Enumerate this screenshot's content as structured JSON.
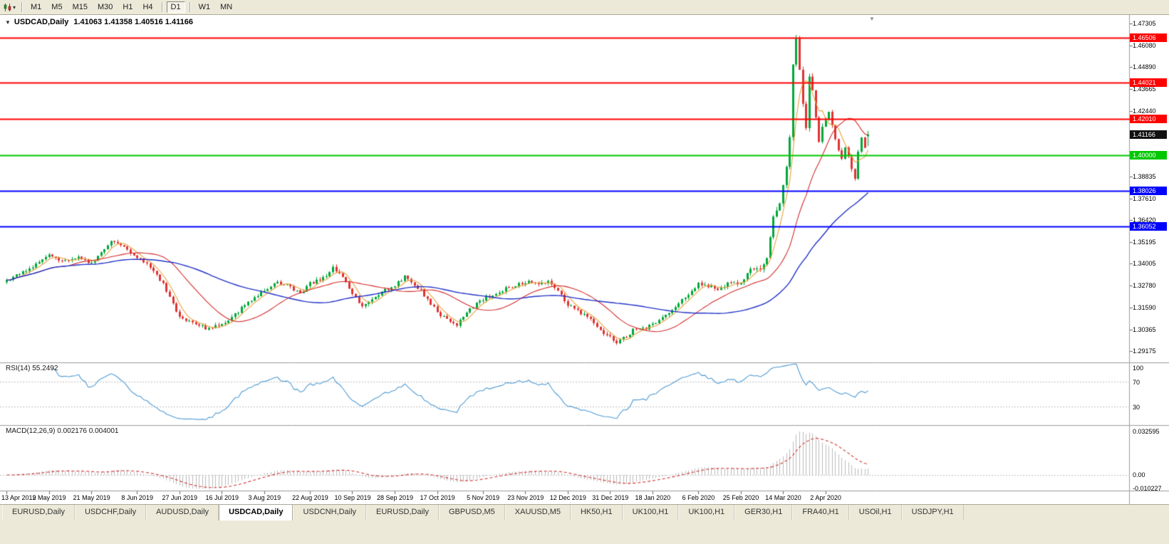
{
  "toolbar": {
    "timeframes": [
      "M1",
      "M5",
      "M15",
      "M30",
      "H1",
      "H4",
      "D1",
      "W1",
      "MN"
    ],
    "active_timeframe": "D1"
  },
  "icons": {
    "chart_type": "candlestick-chart-icon",
    "dropdown_caret": "▾",
    "legend_collapse": "▼",
    "shift_marker": "▼"
  },
  "chart": {
    "legend": {
      "title": "USDCAD,Daily",
      "ohlc": "1.41063 1.41358 1.40516 1.41166"
    },
    "price_axis_labels": [
      "1.47305",
      "1.46080",
      "1.44890",
      "1.43665",
      "1.42440",
      "1.38835",
      "1.37610",
      "1.36420",
      "1.35195",
      "1.34005",
      "1.32780",
      "1.31590",
      "1.30365",
      "1.29175"
    ],
    "current_price_label": "1.41166",
    "levels": [
      {
        "price": 1.46506,
        "label": "1.46506",
        "color": "#FF0000"
      },
      {
        "price": 1.44021,
        "label": "1.44021",
        "color": "#FF0000"
      },
      {
        "price": 1.4201,
        "label": "1.42010",
        "color": "#FF0000"
      },
      {
        "price": 1.4,
        "label": "1.40000",
        "color": "#00C800"
      },
      {
        "price": 1.38026,
        "label": "1.38026",
        "color": "#0000FF"
      },
      {
        "price": 1.36052,
        "label": "1.36052",
        "color": "#0000FF"
      }
    ],
    "date_labels": [
      "13 Apr 2019",
      "2 May 2019",
      "21 May 2019",
      "8 Jun 2019",
      "27 Jun 2019",
      "16 Jul 2019",
      "3 Aug 2019",
      "22 Aug 2019",
      "10 Sep 2019",
      "28 Sep 2019",
      "17 Oct 2019",
      "5 Nov 2019",
      "23 Nov 2019",
      "12 Dec 2019",
      "31 Dec 2019",
      "18 Jan 2020",
      "6 Feb 2020",
      "25 Feb 2020",
      "14 Mar 2020",
      "2 Apr 2020"
    ],
    "date_tick_indices": [
      0,
      13,
      26,
      40,
      53,
      66,
      79,
      93,
      106,
      119,
      132,
      146,
      159,
      172,
      185,
      198,
      212,
      225,
      238,
      251
    ]
  },
  "rsi_panel": {
    "label": "RSI(14) 55.2492",
    "axis_labels": [
      {
        "value": 100,
        "text": "100"
      },
      {
        "value": 70,
        "text": "70"
      },
      {
        "value": 30,
        "text": "30"
      }
    ]
  },
  "macd_panel": {
    "label": "MACD(12,26,9) 0.002176 0.004001",
    "axis_labels": [
      "0.032595",
      "0.00",
      "-0.010227"
    ]
  },
  "tabs": {
    "items": [
      "EURUSD,Daily",
      "USDCHF,Daily",
      "AUDUSD,Daily",
      "USDCAD,Daily",
      "USDCNH,Daily",
      "EURUSD,Daily",
      "GBPUSD,M5",
      "XAUUSD,M5",
      "HK50,H1",
      "UK100,H1",
      "UK100,H1",
      "GER30,H1",
      "FRA40,H1",
      "USOil,H1",
      "USDJPY,H1"
    ],
    "active_index": 3
  },
  "colors": {
    "toolbar_bg": "#ECE9D8",
    "chart_bg": "#FFFFFF",
    "candle_up": "#00A839",
    "candle_down": "#E03232",
    "ma_fast": "#E8A33D",
    "ma_mid": "#D42A2A",
    "ma_slow": "#2233C8",
    "rsi_line": "#4E9BD4",
    "macd_histogram": "#BBBBBB",
    "macd_signal": "#D43333",
    "current_price_bg": "#111111",
    "level_red": "#FF0000",
    "level_green": "#00C800",
    "level_blue": "#0000FF"
  },
  "chart_data": {
    "type": "candlestick",
    "symbol": "USDCAD",
    "timeframe": "Daily",
    "last_ohlc": {
      "open": 1.41063,
      "high": 1.41358,
      "low": 1.40516,
      "close": 1.41166
    },
    "num_candles": 265,
    "price_axis_range": {
      "top": 1.4782,
      "bottom": 1.2854
    },
    "horizontal_levels": [
      1.46506,
      1.44021,
      1.4201,
      1.4,
      1.38026,
      1.36052
    ],
    "spike": {
      "index": 242,
      "high": 1.4668
    },
    "low_point": {
      "index": 187,
      "low": 1.2951
    },
    "close_anchors": [
      [
        0,
        1.331
      ],
      [
        4,
        1.3345
      ],
      [
        8,
        1.338
      ],
      [
        13,
        1.345
      ],
      [
        17,
        1.3415
      ],
      [
        22,
        1.344
      ],
      [
        26,
        1.34
      ],
      [
        30,
        1.348
      ],
      [
        32,
        1.3535
      ],
      [
        36,
        1.349
      ],
      [
        40,
        1.344
      ],
      [
        44,
        1.3385
      ],
      [
        48,
        1.329
      ],
      [
        53,
        1.3105
      ],
      [
        58,
        1.306
      ],
      [
        62,
        1.304
      ],
      [
        66,
        1.3065
      ],
      [
        70,
        1.312
      ],
      [
        74,
        1.319
      ],
      [
        79,
        1.3255
      ],
      [
        83,
        1.33
      ],
      [
        87,
        1.327
      ],
      [
        90,
        1.3235
      ],
      [
        93,
        1.329
      ],
      [
        97,
        1.332
      ],
      [
        100,
        1.3375
      ],
      [
        103,
        1.333
      ],
      [
        106,
        1.3235
      ],
      [
        109,
        1.317
      ],
      [
        112,
        1.3205
      ],
      [
        115,
        1.325
      ],
      [
        119,
        1.328
      ],
      [
        122,
        1.333
      ],
      [
        124,
        1.3305
      ],
      [
        127,
        1.325
      ],
      [
        130,
        1.318
      ],
      [
        132,
        1.313
      ],
      [
        135,
        1.309
      ],
      [
        138,
        1.306
      ],
      [
        141,
        1.313
      ],
      [
        144,
        1.318
      ],
      [
        146,
        1.3205
      ],
      [
        150,
        1.3235
      ],
      [
        154,
        1.327
      ],
      [
        159,
        1.33
      ],
      [
        163,
        1.3285
      ],
      [
        166,
        1.331
      ],
      [
        169,
        1.325
      ],
      [
        172,
        1.317
      ],
      [
        176,
        1.313
      ],
      [
        180,
        1.308
      ],
      [
        183,
        1.302
      ],
      [
        185,
        1.299
      ],
      [
        187,
        1.2962
      ],
      [
        190,
        1.3
      ],
      [
        193,
        1.305
      ],
      [
        196,
        1.304
      ],
      [
        198,
        1.307
      ],
      [
        201,
        1.31
      ],
      [
        204,
        1.315
      ],
      [
        207,
        1.32
      ],
      [
        210,
        1.325
      ],
      [
        212,
        1.329
      ],
      [
        215,
        1.328
      ],
      [
        218,
        1.3255
      ],
      [
        221,
        1.329
      ],
      [
        225,
        1.329
      ],
      [
        228,
        1.338
      ],
      [
        231,
        1.3365
      ],
      [
        233,
        1.343
      ],
      [
        235,
        1.366
      ],
      [
        237,
        1.3735
      ],
      [
        239,
        1.3925
      ],
      [
        240,
        1.4105
      ],
      [
        241,
        1.45
      ],
      [
        242,
        1.464
      ],
      [
        243,
        1.448
      ],
      [
        244,
        1.4285
      ],
      [
        245,
        1.4145
      ],
      [
        246,
        1.444
      ],
      [
        247,
        1.435
      ],
      [
        248,
        1.4205
      ],
      [
        249,
        1.4085
      ],
      [
        250,
        1.415
      ],
      [
        251,
        1.4195
      ],
      [
        252,
        1.425
      ],
      [
        253,
        1.416
      ],
      [
        254,
        1.4085
      ],
      [
        255,
        1.4035
      ],
      [
        256,
        1.399
      ],
      [
        257,
        1.405
      ],
      [
        258,
        1.4
      ],
      [
        259,
        1.3935
      ],
      [
        260,
        1.3875
      ],
      [
        261,
        1.403
      ],
      [
        262,
        1.409
      ],
      [
        263,
        1.405
      ],
      [
        264,
        1.41166
      ]
    ],
    "moving_averages": [
      {
        "type": "sma",
        "period": 5,
        "color": "#E8A33D"
      },
      {
        "type": "sma",
        "period": 20,
        "color": "#D42A2A"
      },
      {
        "type": "sma",
        "period": 50,
        "color": "#2233C8"
      }
    ],
    "rsi": {
      "period": 14,
      "current": 55.2492,
      "levels": [
        70,
        30
      ],
      "range": [
        0,
        100
      ]
    },
    "macd": {
      "fast": 12,
      "slow": 26,
      "signal_period": 9,
      "current_macd": 0.002176,
      "current_signal": 0.004001,
      "axis_top": 0.032595,
      "axis_bottom": -0.010227
    }
  }
}
